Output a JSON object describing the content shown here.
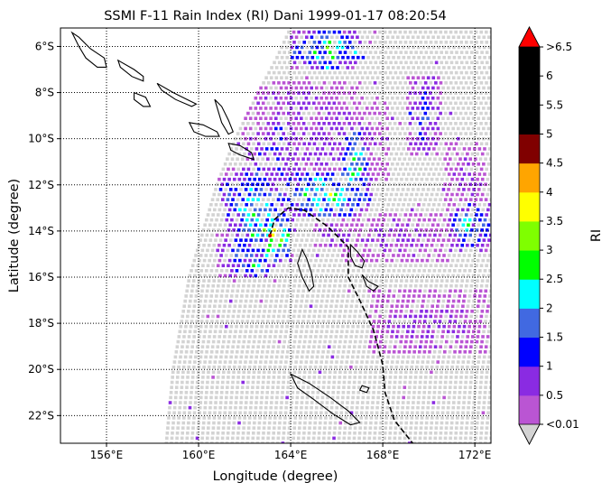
{
  "chart_data": {
    "type": "heatmap",
    "title": "SSMI F-11 Rain Index (RI) Dani 1999-01-17 08:20:54",
    "xlabel": "Longitude (degree)",
    "ylabel": "Latitude (degree)",
    "colorbar_label": "RI",
    "xlim": [
      154.0,
      172.7
    ],
    "ylim": [
      -23.2,
      -5.2
    ],
    "xticks": [
      156,
      160,
      164,
      168,
      172
    ],
    "xtick_labels": [
      "156°E",
      "160°E",
      "164°E",
      "168°E",
      "172°E"
    ],
    "yticks": [
      -6,
      -8,
      -10,
      -12,
      -14,
      -16,
      -18,
      -20,
      -22
    ],
    "ytick_labels": [
      "6°S",
      "8°S",
      "10°S",
      "12°S",
      "14°S",
      "16°S",
      "18°S",
      "20°S",
      "22°S"
    ],
    "grid": true,
    "colorbar": {
      "boundaries": [
        0.01,
        0.5,
        1,
        1.5,
        2,
        2.5,
        3,
        3.5,
        4,
        4.5,
        5,
        5.5,
        6,
        6.5
      ],
      "tick_labels": [
        "<0.01",
        "0.5",
        "1",
        "1.5",
        "2",
        "2.5",
        "3",
        "3.5",
        "4",
        "4.5",
        "5",
        "5.5",
        "6",
        ">6.5"
      ],
      "colors": [
        "#ba55d3",
        "#8a2be2",
        "#0000ff",
        "#4169e1",
        "#00ffff",
        "#00ff00",
        "#7fff00",
        "#ffff00",
        "#ffa500",
        "#800000",
        "#000000",
        "#000000",
        "#000000"
      ],
      "under_color": "#d3d3d3",
      "over_color": "#ff0000",
      "extend": "both"
    },
    "swath": {
      "left_edge": [
        [
          158.6,
          -23.2
        ],
        [
          158.9,
          -20
        ],
        [
          159.6,
          -16
        ],
        [
          160.8,
          -12
        ],
        [
          161.6,
          -10
        ],
        [
          162.6,
          -8
        ],
        [
          163.4,
          -6.5
        ],
        [
          164.0,
          -5.2
        ]
      ],
      "right_edge_lon": 172.7,
      "no_rain_color": "#d3d3d3"
    },
    "rain_clusters": [
      {
        "lon": 161.3,
        "lat": -12.3,
        "w": 0.5,
        "h": 0.6,
        "ri": 1.8
      },
      {
        "lon": 162.4,
        "lat": -13.0,
        "w": 1.2,
        "h": 1.8,
        "ri": 2.2
      },
      {
        "lon": 163.2,
        "lat": -14.2,
        "w": 1.0,
        "h": 1.2,
        "ri": 3.2
      },
      {
        "lon": 162.0,
        "lat": -15.0,
        "w": 1.2,
        "h": 1.0,
        "ri": 1.7
      },
      {
        "lon": 162.5,
        "lat": -15.6,
        "w": 0.8,
        "h": 0.4,
        "ri": 2.7
      },
      {
        "lon": 165.5,
        "lat": -12.4,
        "w": 2.0,
        "h": 1.0,
        "ri": 2.8
      },
      {
        "lon": 166.8,
        "lat": -11.2,
        "w": 0.6,
        "h": 1.8,
        "ri": 2.6
      },
      {
        "lon": 165.5,
        "lat": -10.0,
        "w": 2.8,
        "h": 1.8,
        "ri": 0.8
      },
      {
        "lon": 164.5,
        "lat": -8.6,
        "w": 2.6,
        "h": 1.2,
        "ri": 0.7
      },
      {
        "lon": 163.4,
        "lat": -10.6,
        "w": 1.4,
        "h": 1.6,
        "ri": 1.2
      },
      {
        "lon": 165.6,
        "lat": -6.2,
        "w": 1.6,
        "h": 0.9,
        "ri": 2.6
      },
      {
        "lon": 169.8,
        "lat": -9.0,
        "w": 0.8,
        "h": 1.8,
        "ri": 1.3
      },
      {
        "lon": 171.8,
        "lat": -13.8,
        "w": 0.9,
        "h": 1.1,
        "ri": 2.2
      },
      {
        "lon": 171.6,
        "lat": -11.8,
        "w": 0.9,
        "h": 1.6,
        "ri": 0.7
      },
      {
        "lon": 168.6,
        "lat": -14.3,
        "w": 2.4,
        "h": 1.2,
        "ri": 0.7
      },
      {
        "lon": 165.8,
        "lat": -14.2,
        "w": 0.8,
        "h": 0.6,
        "ri": 1.1
      },
      {
        "lon": 170.0,
        "lat": -18.0,
        "w": 2.6,
        "h": 1.4,
        "ri": 0.7
      }
    ],
    "track": [
      [
        163.1,
        -14.2
      ],
      [
        163.3,
        -13.5
      ],
      [
        163.9,
        -13.0
      ],
      [
        164.6,
        -13.1
      ],
      [
        165.6,
        -13.8
      ],
      [
        166.5,
        -14.7
      ],
      [
        166.5,
        -16.0
      ],
      [
        167.0,
        -17.0
      ],
      [
        167.6,
        -18.3
      ],
      [
        168.0,
        -19.8
      ],
      [
        168.1,
        -21.0
      ],
      [
        168.5,
        -22.2
      ],
      [
        169.3,
        -23.2
      ]
    ],
    "track_marker": [
      163.1,
      -14.2
    ],
    "coastlines": [
      [
        [
          154.5,
          -5.4
        ],
        [
          154.8,
          -5.6
        ],
        [
          155.3,
          -6.1
        ],
        [
          155.9,
          -6.5
        ],
        [
          156.0,
          -6.9
        ],
        [
          155.6,
          -6.9
        ],
        [
          155.1,
          -6.5
        ],
        [
          154.8,
          -6.0
        ],
        [
          154.5,
          -5.4
        ]
      ],
      [
        [
          156.5,
          -6.6
        ],
        [
          157.2,
          -7.0
        ],
        [
          157.6,
          -7.3
        ],
        [
          157.6,
          -7.5
        ],
        [
          157.1,
          -7.3
        ],
        [
          156.6,
          -6.9
        ],
        [
          156.5,
          -6.6
        ]
      ],
      [
        [
          157.2,
          -8.0
        ],
        [
          157.7,
          -8.2
        ],
        [
          157.9,
          -8.6
        ],
        [
          157.6,
          -8.6
        ],
        [
          157.2,
          -8.3
        ],
        [
          157.2,
          -8.0
        ]
      ],
      [
        [
          158.2,
          -7.6
        ],
        [
          158.9,
          -8.0
        ],
        [
          159.5,
          -8.3
        ],
        [
          159.9,
          -8.5
        ],
        [
          159.7,
          -8.6
        ],
        [
          159.0,
          -8.3
        ],
        [
          158.4,
          -7.9
        ],
        [
          158.2,
          -7.6
        ]
      ],
      [
        [
          159.6,
          -9.3
        ],
        [
          160.2,
          -9.4
        ],
        [
          160.8,
          -9.7
        ],
        [
          160.9,
          -9.9
        ],
        [
          160.3,
          -9.9
        ],
        [
          159.8,
          -9.7
        ],
        [
          159.6,
          -9.3
        ]
      ],
      [
        [
          160.7,
          -8.3
        ],
        [
          161.0,
          -8.6
        ],
        [
          161.3,
          -9.2
        ],
        [
          161.5,
          -9.7
        ],
        [
          161.3,
          -9.8
        ],
        [
          161.0,
          -9.3
        ],
        [
          160.7,
          -8.3
        ]
      ],
      [
        [
          161.3,
          -10.2
        ],
        [
          161.8,
          -10.3
        ],
        [
          162.3,
          -10.6
        ],
        [
          162.4,
          -10.9
        ],
        [
          161.8,
          -10.7
        ],
        [
          161.4,
          -10.5
        ],
        [
          161.3,
          -10.2
        ]
      ],
      [
        [
          166.6,
          -14.6
        ],
        [
          166.9,
          -14.9
        ],
        [
          167.2,
          -15.3
        ],
        [
          167.1,
          -15.6
        ],
        [
          166.8,
          -15.5
        ],
        [
          166.6,
          -15.1
        ],
        [
          166.6,
          -14.6
        ]
      ],
      [
        [
          167.1,
          -15.9
        ],
        [
          167.4,
          -16.2
        ],
        [
          167.8,
          -16.4
        ],
        [
          167.6,
          -16.6
        ],
        [
          167.3,
          -16.4
        ],
        [
          167.1,
          -15.9
        ]
      ],
      [
        [
          164.0,
          -20.2
        ],
        [
          164.8,
          -20.6
        ],
        [
          165.7,
          -21.2
        ],
        [
          166.5,
          -21.8
        ],
        [
          167.0,
          -22.3
        ],
        [
          166.6,
          -22.4
        ],
        [
          165.8,
          -21.9
        ],
        [
          165.0,
          -21.3
        ],
        [
          164.3,
          -20.8
        ],
        [
          164.0,
          -20.2
        ]
      ],
      [
        [
          167.1,
          -20.7
        ],
        [
          167.4,
          -20.8
        ],
        [
          167.3,
          -21.0
        ],
        [
          167.0,
          -20.9
        ],
        [
          167.1,
          -20.7
        ]
      ],
      [
        [
          164.5,
          -14.8
        ],
        [
          164.7,
          -15.2
        ],
        [
          164.9,
          -15.8
        ],
        [
          165.0,
          -16.4
        ],
        [
          164.8,
          -16.6
        ],
        [
          164.5,
          -16.0
        ],
        [
          164.3,
          -15.4
        ],
        [
          164.5,
          -14.8
        ]
      ]
    ]
  }
}
